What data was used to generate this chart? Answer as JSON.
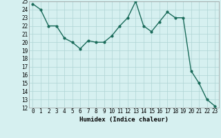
{
  "x": [
    0,
    1,
    2,
    3,
    4,
    5,
    6,
    7,
    8,
    9,
    10,
    11,
    12,
    13,
    14,
    15,
    16,
    17,
    18,
    19,
    20,
    21,
    22,
    23
  ],
  "y": [
    24.7,
    24.0,
    22.0,
    22.0,
    20.5,
    20.0,
    19.2,
    20.2,
    20.0,
    20.0,
    20.8,
    22.0,
    23.0,
    25.0,
    22.0,
    21.3,
    22.5,
    23.7,
    23.0,
    23.0,
    16.5,
    15.0,
    13.0,
    12.2
  ],
  "line_color": "#1a6b5a",
  "marker_color": "#1a6b5a",
  "bg_color": "#d6f0f0",
  "grid_color": "#aed4d4",
  "xlabel": "Humidex (Indice chaleur)",
  "ylim": [
    12,
    25
  ],
  "xlim": [
    -0.5,
    23.5
  ],
  "yticks": [
    12,
    13,
    14,
    15,
    16,
    17,
    18,
    19,
    20,
    21,
    22,
    23,
    24,
    25
  ],
  "xticks": [
    0,
    1,
    2,
    3,
    4,
    5,
    6,
    7,
    8,
    9,
    10,
    11,
    12,
    13,
    14,
    15,
    16,
    17,
    18,
    19,
    20,
    21,
    22,
    23
  ],
  "xlabel_fontsize": 6.5,
  "tick_fontsize": 5.5,
  "marker_size": 2.0,
  "line_width": 1.0
}
